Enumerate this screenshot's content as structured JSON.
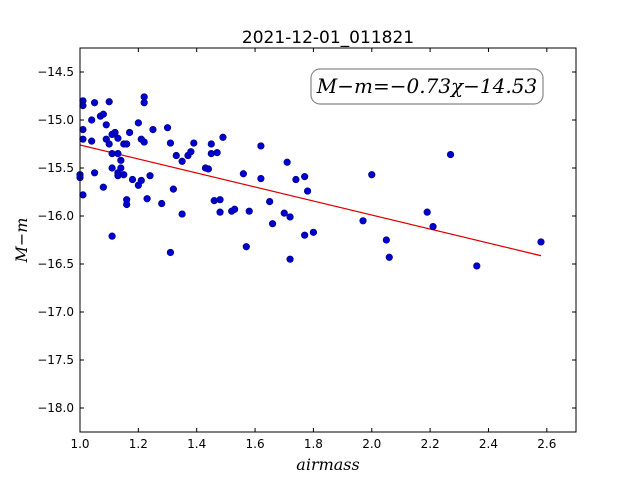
{
  "chart_data": {
    "type": "scatter",
    "title": "2021-12-01_011821",
    "xlabel": "airmass",
    "ylabel": "M−m",
    "xlim": [
      1.0,
      2.7
    ],
    "ylim": [
      -18.25,
      -14.25
    ],
    "x_ticks": [
      "1.0",
      "1.2",
      "1.4",
      "1.6",
      "1.8",
      "2.0",
      "2.2",
      "2.4",
      "2.6"
    ],
    "y_ticks": [
      "−14.5",
      "−15.0",
      "−15.5",
      "−16.0",
      "−16.5",
      "−17.0",
      "−17.5",
      "−18.0"
    ],
    "annotation": "M−m=−0.73χ−14.53",
    "grid": false,
    "point_color": "#0000cc",
    "line_color": "#dd0000",
    "fit": {
      "slope": -0.73,
      "intercept": -14.53,
      "x_range": [
        1.0,
        2.58
      ]
    },
    "points": [
      [
        1.0,
        -15.57
      ],
      [
        1.0,
        -15.6
      ],
      [
        1.01,
        -15.78
      ],
      [
        1.01,
        -14.8
      ],
      [
        1.01,
        -14.85
      ],
      [
        1.01,
        -15.1
      ],
      [
        1.01,
        -15.2
      ],
      [
        1.04,
        -15.0
      ],
      [
        1.04,
        -15.22
      ],
      [
        1.05,
        -14.82
      ],
      [
        1.05,
        -15.55
      ],
      [
        1.07,
        -14.96
      ],
      [
        1.08,
        -14.94
      ],
      [
        1.08,
        -15.7
      ],
      [
        1.09,
        -15.05
      ],
      [
        1.09,
        -15.2
      ],
      [
        1.1,
        -15.25
      ],
      [
        1.1,
        -14.81
      ],
      [
        1.11,
        -15.15
      ],
      [
        1.11,
        -15.35
      ],
      [
        1.11,
        -15.5
      ],
      [
        1.11,
        -16.21
      ],
      [
        1.12,
        -15.13
      ],
      [
        1.13,
        -15.35
      ],
      [
        1.13,
        -15.55
      ],
      [
        1.13,
        -15.58
      ],
      [
        1.13,
        -15.19
      ],
      [
        1.14,
        -15.42
      ],
      [
        1.14,
        -15.5
      ],
      [
        1.15,
        -15.25
      ],
      [
        1.15,
        -15.57
      ],
      [
        1.16,
        -15.25
      ],
      [
        1.16,
        -15.83
      ],
      [
        1.16,
        -15.88
      ],
      [
        1.17,
        -15.13
      ],
      [
        1.18,
        -15.62
      ],
      [
        1.2,
        -15.03
      ],
      [
        1.2,
        -15.68
      ],
      [
        1.21,
        -15.2
      ],
      [
        1.21,
        -15.63
      ],
      [
        1.22,
        -15.23
      ],
      [
        1.22,
        -14.76
      ],
      [
        1.22,
        -14.82
      ],
      [
        1.23,
        -15.82
      ],
      [
        1.24,
        -15.58
      ],
      [
        1.25,
        -15.1
      ],
      [
        1.28,
        -15.87
      ],
      [
        1.3,
        -15.08
      ],
      [
        1.31,
        -16.38
      ],
      [
        1.31,
        -15.24
      ],
      [
        1.32,
        -15.72
      ],
      [
        1.33,
        -15.37
      ],
      [
        1.35,
        -15.43
      ],
      [
        1.35,
        -15.98
      ],
      [
        1.37,
        -15.37
      ],
      [
        1.38,
        -15.33
      ],
      [
        1.39,
        -15.24
      ],
      [
        1.43,
        -15.5
      ],
      [
        1.44,
        -15.51
      ],
      [
        1.45,
        -15.35
      ],
      [
        1.45,
        -15.25
      ],
      [
        1.46,
        -15.84
      ],
      [
        1.47,
        -15.34
      ],
      [
        1.48,
        -15.83
      ],
      [
        1.48,
        -15.96
      ],
      [
        1.49,
        -15.18
      ],
      [
        1.52,
        -15.95
      ],
      [
        1.53,
        -15.93
      ],
      [
        1.56,
        -15.56
      ],
      [
        1.57,
        -16.32
      ],
      [
        1.58,
        -15.95
      ],
      [
        1.62,
        -15.27
      ],
      [
        1.62,
        -15.61
      ],
      [
        1.65,
        -15.85
      ],
      [
        1.66,
        -16.08
      ],
      [
        1.7,
        -15.97
      ],
      [
        1.71,
        -15.44
      ],
      [
        1.72,
        -16.01
      ],
      [
        1.72,
        -16.45
      ],
      [
        1.74,
        -15.62
      ],
      [
        1.77,
        -15.59
      ],
      [
        1.77,
        -16.2
      ],
      [
        1.78,
        -15.74
      ],
      [
        1.8,
        -16.17
      ],
      [
        1.97,
        -16.05
      ],
      [
        2.0,
        -15.57
      ],
      [
        2.05,
        -16.25
      ],
      [
        2.06,
        -16.43
      ],
      [
        2.19,
        -15.96
      ],
      [
        2.21,
        -16.11
      ],
      [
        2.27,
        -15.36
      ],
      [
        2.36,
        -16.52
      ],
      [
        2.58,
        -16.27
      ]
    ]
  }
}
